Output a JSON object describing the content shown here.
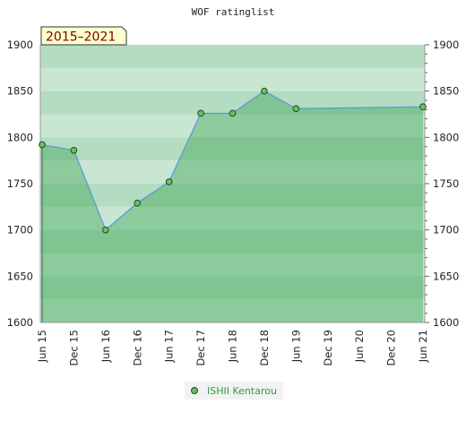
{
  "chart_data": {
    "type": "area",
    "title": "WOF ratinglist",
    "badge": "2015–2021",
    "x": [
      "Jun 15",
      "Dec 15",
      "Jun 16",
      "Dec 16",
      "Jun 17",
      "Dec 17",
      "Jun 18",
      "Dec 18",
      "Jun 19",
      "Dec 19",
      "Jun 20",
      "Dec 20",
      "Jun 21"
    ],
    "series": [
      {
        "name": "ISHII Kentarou",
        "values": [
          1792,
          1786,
          1700,
          1729,
          1752,
          1826,
          1826,
          1850,
          1831,
          null,
          null,
          null,
          1833
        ]
      }
    ],
    "ylim": [
      1600,
      1900
    ],
    "yticks": [
      1600,
      1650,
      1700,
      1750,
      1800,
      1850,
      1900
    ],
    "y_axis_both_sides": true,
    "grid": "horizontal-bands",
    "legend": "bottom",
    "colors": {
      "line": "#5b9bd5",
      "marker_fill": "#6abf69",
      "marker_stroke": "#1a4d1a",
      "fill": "#2e9e48",
      "badge_bg": "#ffffcc",
      "badge_border": "#333333",
      "badge_text": "#7a0000",
      "legend_text": "#2e9e3e",
      "legend_bg": "#f2f2f2"
    }
  }
}
